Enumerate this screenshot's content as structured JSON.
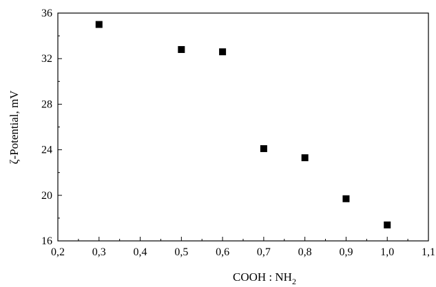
{
  "chart_data": {
    "type": "scatter",
    "title": "",
    "xlabel_main": "COOH : NH",
    "xlabel_sub": "2",
    "ylabel": "ζ-Potential, mV",
    "xlim": [
      0.2,
      1.1
    ],
    "ylim": [
      16,
      36
    ],
    "grid": false,
    "x_ticks": [
      "0,2",
      "0,3",
      "0,4",
      "0,5",
      "0,6",
      "0,7",
      "0,8",
      "0,9",
      "1,0",
      "1,1"
    ],
    "y_ticks": [
      "16",
      "20",
      "24",
      "28",
      "32",
      "36"
    ],
    "marker": "square",
    "marker_color": "#000000",
    "series": [
      {
        "points": [
          {
            "x": 0.3,
            "y": 35.0
          },
          {
            "x": 0.5,
            "y": 32.8
          },
          {
            "x": 0.6,
            "y": 32.6
          },
          {
            "x": 0.7,
            "y": 24.1
          },
          {
            "x": 0.8,
            "y": 23.3
          },
          {
            "x": 0.9,
            "y": 19.7
          },
          {
            "x": 1.0,
            "y": 17.4
          }
        ]
      }
    ]
  }
}
